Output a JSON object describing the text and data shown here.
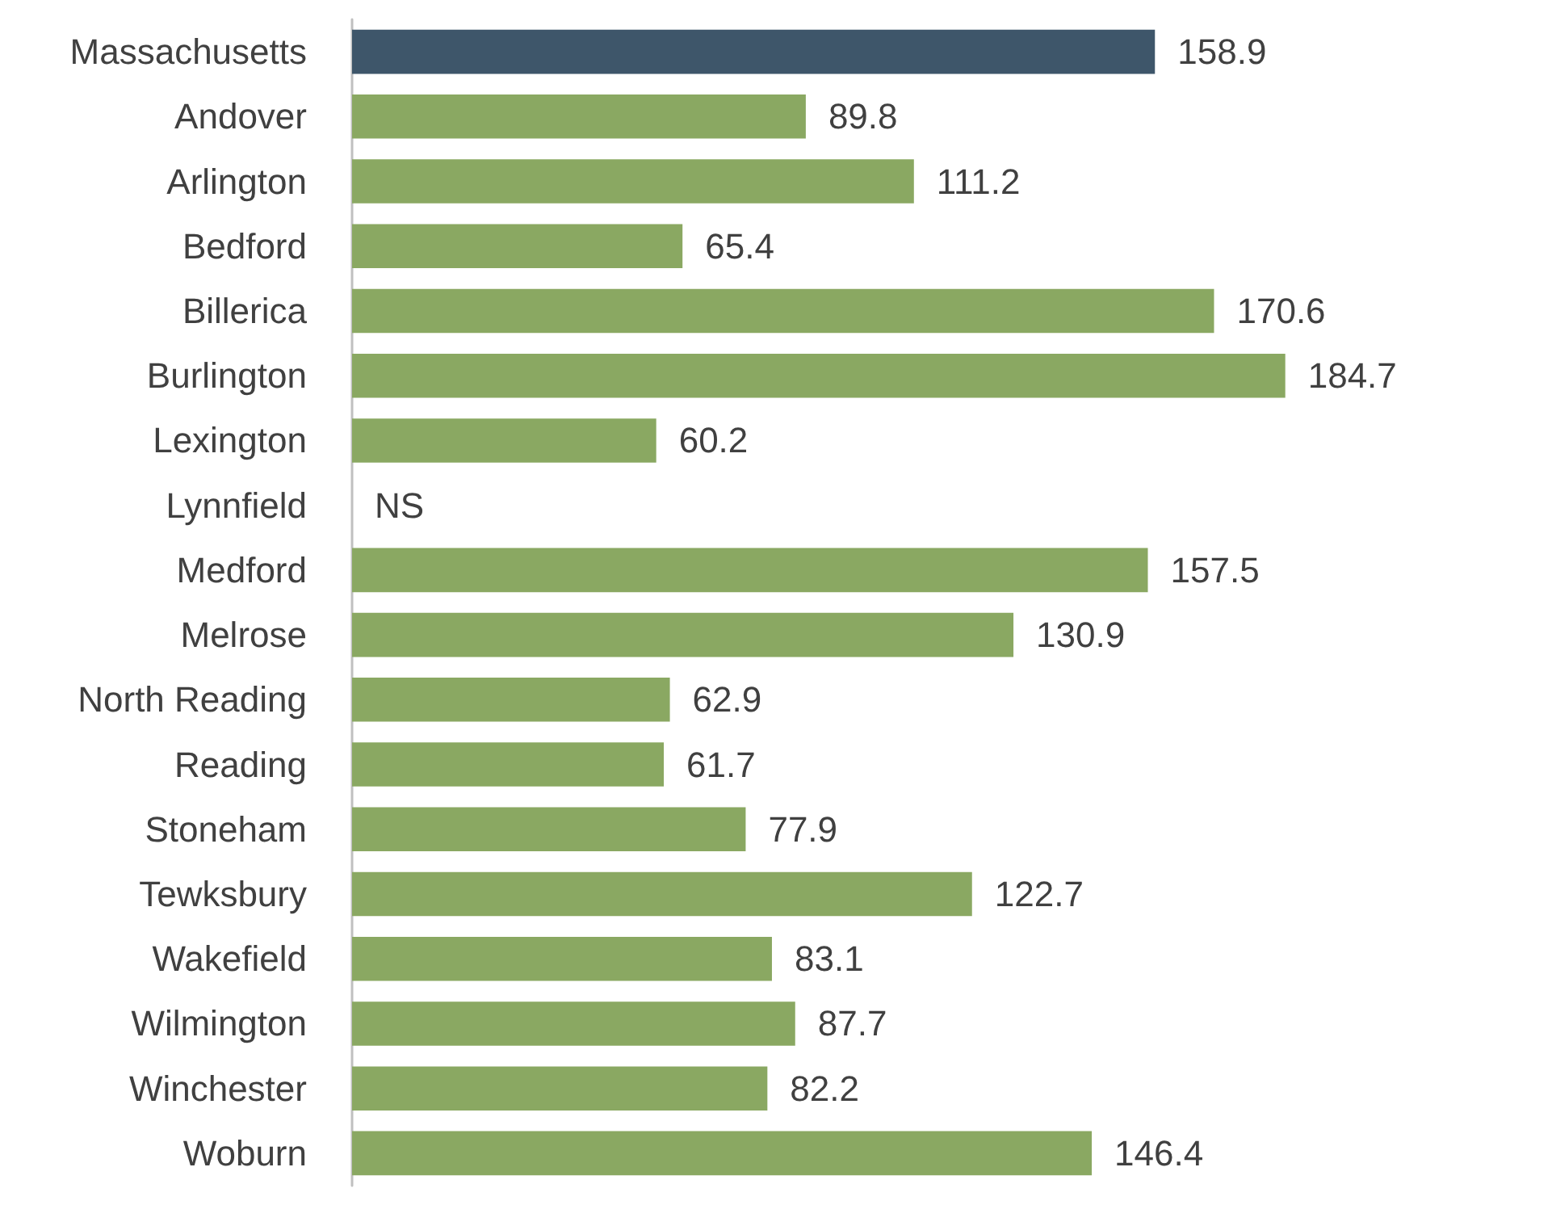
{
  "chart_data": {
    "type": "bar",
    "orientation": "horizontal",
    "categories": [
      "Massachusetts",
      "Andover",
      "Arlington",
      "Bedford",
      "Billerica",
      "Burlington",
      "Lexington",
      "Lynnfield",
      "Medford",
      "Melrose",
      "North Reading",
      "Reading",
      "Stoneham",
      "Tewksbury",
      "Wakefield",
      "Wilmington",
      "Winchester",
      "Woburn"
    ],
    "values": [
      158.9,
      89.8,
      111.2,
      65.4,
      170.6,
      184.7,
      60.2,
      null,
      157.5,
      130.9,
      62.9,
      61.7,
      77.9,
      122.7,
      83.1,
      87.7,
      82.2,
      146.4
    ],
    "value_labels": [
      "158.9",
      "89.8",
      "111.2",
      "65.4",
      "170.6",
      "184.7",
      "60.2",
      "NS",
      "157.5",
      "130.9",
      "62.9",
      "61.7",
      "77.9",
      "122.7",
      "83.1",
      "87.7",
      "82.2",
      "146.4"
    ],
    "colors": [
      "#3e566a",
      "#8aa862",
      "#8aa862",
      "#8aa862",
      "#8aa862",
      "#8aa862",
      "#8aa862",
      "#8aa862",
      "#8aa862",
      "#8aa862",
      "#8aa862",
      "#8aa862",
      "#8aa862",
      "#8aa862",
      "#8aa862",
      "#8aa862",
      "#8aa862",
      "#8aa862"
    ]
  }
}
